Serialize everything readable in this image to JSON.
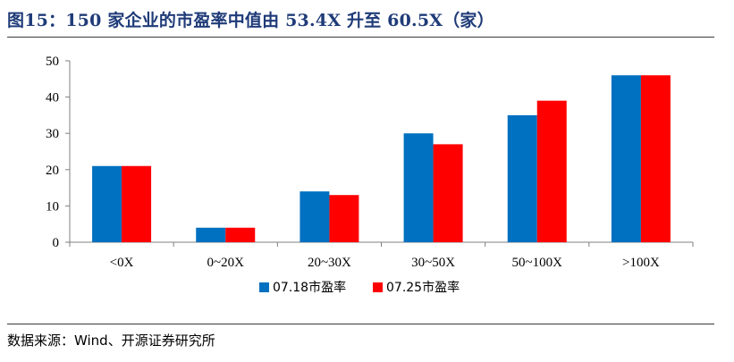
{
  "header": {
    "title": "图15：150 家企业的市盈率中值由 53.4X 升至 60.5X（家）"
  },
  "footer": {
    "source": "数据来源：Wind、开源证券研究所"
  },
  "colors": {
    "series_a": "#0070c0",
    "series_b": "#ff0000",
    "title": "#1f3b78"
  },
  "chart_data": {
    "type": "bar",
    "categories": [
      "<0X",
      "0~20X",
      "20~30X",
      "30~50X",
      "50~100X",
      ">100X"
    ],
    "series": [
      {
        "name": "07.18市盈率",
        "values": [
          21,
          4,
          14,
          30,
          35,
          46
        ]
      },
      {
        "name": "07.25市盈率",
        "values": [
          21,
          4,
          13,
          27,
          39,
          46
        ]
      }
    ],
    "ylim": [
      0,
      50
    ],
    "yticks": [
      0,
      10,
      20,
      30,
      40,
      50
    ],
    "grid": false,
    "legend_position": "bottom"
  }
}
